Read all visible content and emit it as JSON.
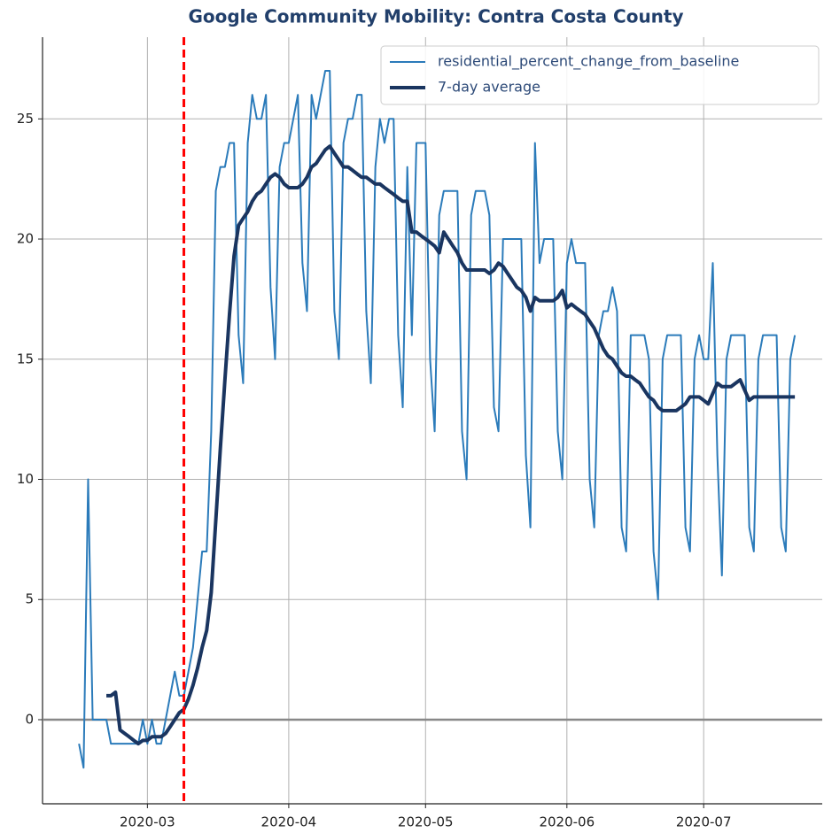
{
  "chart_data": {
    "type": "line",
    "title": "Google Community Mobility: Contra Costa County",
    "x": [
      "2020-02-15",
      "2020-02-16",
      "2020-02-17",
      "2020-02-18",
      "2020-02-19",
      "2020-02-20",
      "2020-02-21",
      "2020-02-22",
      "2020-02-23",
      "2020-02-24",
      "2020-02-25",
      "2020-02-26",
      "2020-02-27",
      "2020-02-28",
      "2020-02-29",
      "2020-03-01",
      "2020-03-02",
      "2020-03-03",
      "2020-03-04",
      "2020-03-05",
      "2020-03-06",
      "2020-03-07",
      "2020-03-08",
      "2020-03-09",
      "2020-03-10",
      "2020-03-11",
      "2020-03-12",
      "2020-03-13",
      "2020-03-14",
      "2020-03-15",
      "2020-03-16",
      "2020-03-17",
      "2020-03-18",
      "2020-03-19",
      "2020-03-20",
      "2020-03-21",
      "2020-03-22",
      "2020-03-23",
      "2020-03-24",
      "2020-03-25",
      "2020-03-26",
      "2020-03-27",
      "2020-03-28",
      "2020-03-29",
      "2020-03-30",
      "2020-03-31",
      "2020-04-01",
      "2020-04-02",
      "2020-04-03",
      "2020-04-04",
      "2020-04-05",
      "2020-04-06",
      "2020-04-07",
      "2020-04-08",
      "2020-04-09",
      "2020-04-10",
      "2020-04-11",
      "2020-04-12",
      "2020-04-13",
      "2020-04-14",
      "2020-04-15",
      "2020-04-16",
      "2020-04-17",
      "2020-04-18",
      "2020-04-19",
      "2020-04-20",
      "2020-04-21",
      "2020-04-22",
      "2020-04-23",
      "2020-04-24",
      "2020-04-25",
      "2020-04-26",
      "2020-04-27",
      "2020-04-28",
      "2020-04-29",
      "2020-04-30",
      "2020-05-01",
      "2020-05-02",
      "2020-05-03",
      "2020-05-04",
      "2020-05-05",
      "2020-05-06",
      "2020-05-07",
      "2020-05-08",
      "2020-05-09",
      "2020-05-10",
      "2020-05-11",
      "2020-05-12",
      "2020-05-13",
      "2020-05-14",
      "2020-05-15",
      "2020-05-16",
      "2020-05-17",
      "2020-05-18",
      "2020-05-19",
      "2020-05-20",
      "2020-05-21",
      "2020-05-22",
      "2020-05-23",
      "2020-05-24",
      "2020-05-25",
      "2020-05-26",
      "2020-05-27",
      "2020-05-28",
      "2020-05-29",
      "2020-05-30",
      "2020-05-31",
      "2020-06-01",
      "2020-06-02",
      "2020-06-03",
      "2020-06-04",
      "2020-06-05",
      "2020-06-06",
      "2020-06-07",
      "2020-06-08",
      "2020-06-09",
      "2020-06-10",
      "2020-06-11",
      "2020-06-12",
      "2020-06-13",
      "2020-06-14",
      "2020-06-15",
      "2020-06-16",
      "2020-06-17",
      "2020-06-18",
      "2020-06-19",
      "2020-06-20",
      "2020-06-21",
      "2020-06-22",
      "2020-06-23",
      "2020-06-24",
      "2020-06-25",
      "2020-06-26",
      "2020-06-27",
      "2020-06-28",
      "2020-06-29",
      "2020-06-30",
      "2020-07-01",
      "2020-07-02",
      "2020-07-03",
      "2020-07-04",
      "2020-07-05",
      "2020-07-06",
      "2020-07-07",
      "2020-07-08",
      "2020-07-09",
      "2020-07-10",
      "2020-07-11",
      "2020-07-12",
      "2020-07-13",
      "2020-07-14",
      "2020-07-15",
      "2020-07-16",
      "2020-07-17",
      "2020-07-18",
      "2020-07-19",
      "2020-07-20",
      "2020-07-21"
    ],
    "series": [
      {
        "name": "residential_percent_change_from_baseline",
        "color": "#2b7bba",
        "width": 2,
        "values": [
          -1,
          -2,
          10,
          0,
          0,
          0,
          0,
          -1,
          -1,
          -1,
          -1,
          -1,
          -1,
          -1,
          0,
          -1,
          0,
          -1,
          -1,
          0,
          1,
          2,
          1,
          1,
          2,
          3,
          5,
          7,
          7,
          12,
          22,
          23,
          23,
          24,
          24,
          16,
          14,
          24,
          26,
          25,
          25,
          26,
          18,
          15,
          23,
          24,
          24,
          25,
          26,
          19,
          17,
          26,
          25,
          26,
          27,
          27,
          17,
          15,
          24,
          25,
          25,
          26,
          26,
          17,
          14,
          23,
          25,
          24,
          25,
          25,
          16,
          13,
          23,
          16,
          24,
          24,
          24,
          15,
          12,
          21,
          22,
          22,
          22,
          22,
          12,
          10,
          21,
          22,
          22,
          22,
          21,
          13,
          12,
          20,
          20,
          20,
          20,
          20,
          11,
          8,
          24,
          19,
          20,
          20,
          20,
          12,
          10,
          19,
          20,
          19,
          19,
          19,
          10,
          8,
          16,
          17,
          17,
          18,
          17,
          8,
          7,
          16,
          16,
          16,
          16,
          15,
          7,
          5,
          15,
          16,
          16,
          16,
          16,
          8,
          7,
          15,
          16,
          15,
          15,
          19,
          11,
          6,
          15,
          16,
          16,
          16,
          16,
          8,
          7,
          15,
          16,
          16,
          16,
          16,
          8,
          7,
          15,
          16
        ]
      },
      {
        "name": "7-day average",
        "color": "#1a3560",
        "width": 4,
        "values": [
          null,
          null,
          null,
          null,
          null,
          null,
          1.0,
          1.0,
          1.14,
          -0.43,
          -0.57,
          -0.71,
          -0.86,
          -1.0,
          -0.86,
          -0.86,
          -0.71,
          -0.71,
          -0.71,
          -0.57,
          -0.29,
          0,
          0.29,
          0.43,
          0.86,
          1.43,
          2.14,
          3.0,
          3.71,
          5.29,
          8.29,
          11.29,
          14.14,
          16.86,
          19.29,
          20.57,
          20.86,
          21.14,
          21.57,
          21.86,
          22.0,
          22.29,
          22.57,
          22.71,
          22.57,
          22.29,
          22.14,
          22.14,
          22.14,
          22.29,
          22.57,
          23.0,
          23.14,
          23.43,
          23.71,
          23.86,
          23.57,
          23.29,
          23.0,
          23.0,
          22.86,
          22.71,
          22.57,
          22.57,
          22.43,
          22.29,
          22.29,
          22.14,
          22.0,
          21.86,
          21.71,
          21.57,
          21.57,
          20.29,
          20.29,
          20.14,
          20.0,
          19.86,
          19.71,
          19.43,
          20.29,
          20.0,
          19.71,
          19.43,
          19.0,
          18.71,
          18.71,
          18.71,
          18.71,
          18.71,
          18.57,
          18.71,
          19.0,
          18.86,
          18.57,
          18.29,
          18.0,
          17.86,
          17.57,
          17.0,
          17.57,
          17.43,
          17.43,
          17.43,
          17.43,
          17.57,
          17.86,
          17.14,
          17.29,
          17.14,
          17.0,
          16.86,
          16.57,
          16.29,
          15.86,
          15.43,
          15.14,
          15.0,
          14.71,
          14.43,
          14.29,
          14.29,
          14.14,
          14.0,
          13.71,
          13.43,
          13.29,
          13.0,
          12.86,
          12.86,
          12.86,
          12.86,
          13.0,
          13.14,
          13.43,
          13.43,
          13.43,
          13.29,
          13.14,
          13.57,
          14.0,
          13.86,
          13.86,
          13.86,
          14.0,
          14.14,
          13.71,
          13.29,
          13.43,
          13.43,
          13.43,
          13.43,
          13.43,
          13.43,
          13.43,
          13.43,
          13.43,
          13.43
        ]
      }
    ],
    "xlim": [
      "2020-02-07",
      "2020-07-27"
    ],
    "xticks": [
      {
        "value": "2020-03-01",
        "label": "2020-03"
      },
      {
        "value": "2020-04-01",
        "label": "2020-04"
      },
      {
        "value": "2020-05-01",
        "label": "2020-05"
      },
      {
        "value": "2020-06-01",
        "label": "2020-06"
      },
      {
        "value": "2020-07-01",
        "label": "2020-07"
      }
    ],
    "ylim": [
      -3.5,
      28.4
    ],
    "yticks": [
      0,
      5,
      10,
      15,
      20,
      25
    ],
    "grid": true,
    "legend": "upper right",
    "vline": {
      "x": "2020-03-09",
      "color": "#ff0000"
    },
    "hline": {
      "y": 0,
      "color": "#888888"
    }
  }
}
